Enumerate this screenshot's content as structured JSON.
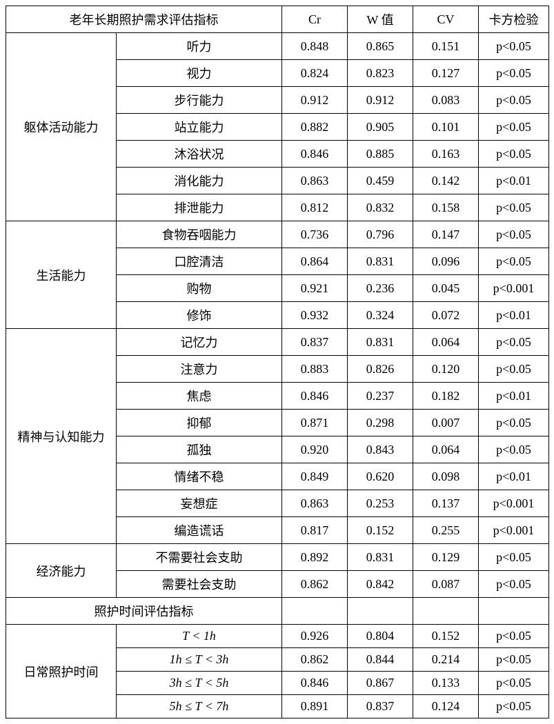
{
  "table": {
    "background_color": "#ffffff",
    "border_color": "#000000",
    "text_color": "#000000",
    "fontsize": 18,
    "columns": {
      "category_label": "老年长期照护需求评估指标",
      "cr": "Cr",
      "w": "W 值",
      "cv": "CV",
      "chi": "卡方检验"
    },
    "groups": [
      {
        "name": "躯体活动能力",
        "rows": [
          {
            "item": "听力",
            "cr": "0.848",
            "w": "0.865",
            "cv": "0.151",
            "chi": "p<0.05"
          },
          {
            "item": "视力",
            "cr": "0.824",
            "w": "0.823",
            "cv": "0.127",
            "chi": "p<0.05"
          },
          {
            "item": "步行能力",
            "cr": "0.912",
            "w": "0.912",
            "cv": "0.083",
            "chi": "p<0.05"
          },
          {
            "item": "站立能力",
            "cr": "0.882",
            "w": "0.905",
            "cv": "0.101",
            "chi": "p<0.05"
          },
          {
            "item": "沐浴状况",
            "cr": "0.846",
            "w": "0.885",
            "cv": "0.163",
            "chi": "p<0.05"
          },
          {
            "item": "消化能力",
            "cr": "0.863",
            "w": "0.459",
            "cv": "0.142",
            "chi": "p<0.01"
          },
          {
            "item": "排泄能力",
            "cr": "0.812",
            "w": "0.832",
            "cv": "0.158",
            "chi": "p<0.05"
          }
        ]
      },
      {
        "name": "生活能力",
        "rows": [
          {
            "item": "食物吞咽能力",
            "cr": "0.736",
            "w": "0.796",
            "cv": "0.147",
            "chi": "p<0.05"
          },
          {
            "item": "口腔清洁",
            "cr": "0.864",
            "w": "0.831",
            "cv": "0.096",
            "chi": "p<0.05"
          },
          {
            "item": "购物",
            "cr": "0.921",
            "w": "0.236",
            "cv": "0.045",
            "chi": "p<0.001"
          },
          {
            "item": "修饰",
            "cr": "0.932",
            "w": "0.324",
            "cv": "0.072",
            "chi": "p<0.01"
          }
        ]
      },
      {
        "name": "精神与认知能力",
        "rows": [
          {
            "item": "记忆力",
            "cr": "0.837",
            "w": "0.831",
            "cv": "0.064",
            "chi": "p<0.05"
          },
          {
            "item": "注意力",
            "cr": "0.883",
            "w": "0.826",
            "cv": "0.120",
            "chi": "p<0.05"
          },
          {
            "item": "焦虑",
            "cr": "0.846",
            "w": "0.237",
            "cv": "0.182",
            "chi": "p<0.01"
          },
          {
            "item": "抑郁",
            "cr": "0.871",
            "w": "0.298",
            "cv": "0.007",
            "chi": "p<0.05"
          },
          {
            "item": "孤独",
            "cr": "0.920",
            "w": "0.843",
            "cv": "0.064",
            "chi": "p<0.05"
          },
          {
            "item": "情绪不稳",
            "cr": "0.849",
            "w": "0.620",
            "cv": "0.098",
            "chi": "p<0.01"
          },
          {
            "item": "妄想症",
            "cr": "0.863",
            "w": "0.253",
            "cv": "0.137",
            "chi": "p<0.001"
          },
          {
            "item": "编造谎话",
            "cr": "0.817",
            "w": "0.152",
            "cv": "0.255",
            "chi": "p<0.001"
          }
        ]
      },
      {
        "name": "经济能力",
        "rows": [
          {
            "item": "不需要社会支助",
            "cr": "0.892",
            "w": "0.831",
            "cv": "0.129",
            "chi": "p<0.05"
          },
          {
            "item": "需要社会支助",
            "cr": "0.862",
            "w": "0.842",
            "cv": "0.087",
            "chi": "p<0.05"
          }
        ]
      }
    ],
    "section2_label": "照护时间评估指标",
    "time_group": {
      "name": "日常照护时间",
      "rows": [
        {
          "item_math": "T < 1h",
          "cr": "0.926",
          "w": "0.804",
          "cv": "0.152",
          "chi": "p<0.05"
        },
        {
          "item_math": "1h ≤ T < 3h",
          "cr": "0.862",
          "w": "0.844",
          "cv": "0.214",
          "chi": "p<0.05"
        },
        {
          "item_math": "3h ≤ T < 5h",
          "cr": "0.846",
          "w": "0.867",
          "cv": "0.133",
          "chi": "p<0.05"
        },
        {
          "item_math": "5h ≤ T < 7h",
          "cr": "0.891",
          "w": "0.837",
          "cv": "0.124",
          "chi": "p<0.05"
        }
      ]
    }
  }
}
